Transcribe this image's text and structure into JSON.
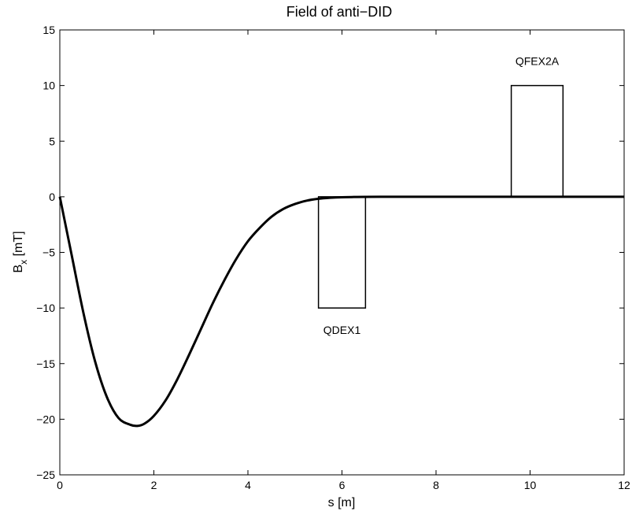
{
  "chart_data": {
    "type": "line",
    "title": "Field of anti−DID",
    "xlabel": "s [m]",
    "ylabel_main": "B",
    "ylabel_sub": "x",
    "ylabel_unit": " [mT]",
    "xlim": [
      0,
      12
    ],
    "ylim": [
      -25,
      15
    ],
    "xticks": [
      0,
      2,
      4,
      6,
      8,
      10,
      12
    ],
    "yticks": [
      -25,
      -20,
      -15,
      -10,
      -5,
      0,
      5,
      10,
      15
    ],
    "xtick_labels": [
      "0",
      "2",
      "4",
      "6",
      "8",
      "10",
      "12"
    ],
    "ytick_labels": [
      "−25",
      "−20",
      "−15",
      "−10",
      "−5",
      "0",
      "5",
      "10",
      "15"
    ],
    "grid": false,
    "series": [
      {
        "color": "#000000",
        "x": [
          0,
          0.25,
          0.5,
          0.75,
          1.0,
          1.25,
          1.5,
          1.65,
          1.8,
          2.0,
          2.25,
          2.5,
          2.75,
          3.0,
          3.25,
          3.5,
          3.75,
          4.0,
          4.25,
          4.5,
          4.75,
          5.0,
          5.25,
          5.5,
          5.75,
          6.0,
          6.25,
          6.5,
          7.0,
          7.5,
          8.0,
          9.0,
          10.0,
          11.0,
          12.0
        ],
        "y": [
          0,
          -5.2,
          -10.4,
          -14.8,
          -18.0,
          -19.9,
          -20.5,
          -20.6,
          -20.4,
          -19.7,
          -18.3,
          -16.4,
          -14.2,
          -11.9,
          -9.6,
          -7.5,
          -5.6,
          -4.0,
          -2.8,
          -1.8,
          -1.1,
          -0.65,
          -0.35,
          -0.18,
          -0.09,
          -0.04,
          -0.02,
          -0.01,
          0,
          0,
          0,
          0,
          0,
          0,
          0
        ]
      }
    ],
    "magnets": [
      {
        "name": "QDEX1",
        "x_start": 5.5,
        "x_end": 6.5,
        "value": -10
      },
      {
        "name": "QFEX2A",
        "x_start": 9.6,
        "x_end": 10.7,
        "value": 10
      }
    ]
  }
}
